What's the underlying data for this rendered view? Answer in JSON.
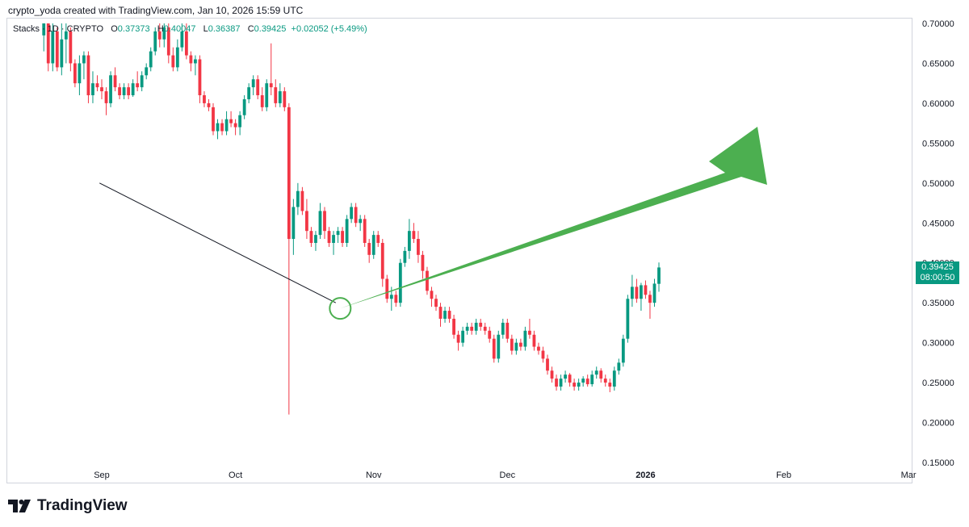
{
  "header": {
    "caption": "crypto_yoda created with TradingView.com, Jan 10, 2026 15:59 UTC"
  },
  "legend": {
    "symbol": "Stacks · 1D · CRYPTO",
    "o_label": "O",
    "o": "0.37373",
    "h_label": "H",
    "h": "0.40047",
    "l_label": "L",
    "l": "0.36387",
    "c_label": "C",
    "c": "0.39425",
    "change": "+0.02052 (+5.49%)"
  },
  "price_badge": {
    "price": "0.39425",
    "countdown": "08:00:50"
  },
  "footer": {
    "logo": "TradingView"
  },
  "colors": {
    "up": "#089981",
    "down": "#f23645",
    "arrow": "#4caf50",
    "circle": "#4caf50",
    "trend": "#131722"
  },
  "chart_data": {
    "type": "candlestick",
    "title": "Stacks 1D CRYPTO",
    "ylim": [
      0.15,
      0.7
    ],
    "y_ticks": [
      "0.70000",
      "0.65000",
      "0.60000",
      "0.55000",
      "0.50000",
      "0.45000",
      "0.40000",
      "0.35000",
      "0.30000",
      "0.25000",
      "0.20000",
      "0.15000"
    ],
    "x_ticks": [
      {
        "label": "Sep",
        "day": 0
      },
      {
        "label": "Oct",
        "day": 30
      },
      {
        "label": "Nov",
        "day": 61
      },
      {
        "label": "Dec",
        "day": 91
      },
      {
        "label": "2026",
        "day": 122
      },
      {
        "label": "Feb",
        "day": 153
      },
      {
        "label": "Mar",
        "day": 181
      }
    ],
    "first_day": -13,
    "candles": [
      [
        0.685,
        0.7,
        0.665,
        0.7
      ],
      [
        0.7,
        0.705,
        0.64,
        0.65
      ],
      [
        0.65,
        0.7,
        0.64,
        0.69
      ],
      [
        0.69,
        0.695,
        0.64,
        0.645
      ],
      [
        0.645,
        0.7,
        0.635,
        0.68
      ],
      [
        0.68,
        0.705,
        0.65,
        0.69
      ],
      [
        0.69,
        0.695,
        0.64,
        0.65
      ],
      [
        0.65,
        0.655,
        0.62,
        0.625
      ],
      [
        0.625,
        0.66,
        0.61,
        0.65
      ],
      [
        0.65,
        0.665,
        0.63,
        0.66
      ],
      [
        0.66,
        0.665,
        0.6,
        0.61
      ],
      [
        0.61,
        0.64,
        0.6,
        0.625
      ],
      [
        0.625,
        0.635,
        0.615,
        0.62
      ],
      [
        0.62,
        0.63,
        0.605,
        0.615
      ],
      [
        0.615,
        0.62,
        0.585,
        0.6
      ],
      [
        0.6,
        0.64,
        0.595,
        0.635
      ],
      [
        0.635,
        0.645,
        0.615,
        0.62
      ],
      [
        0.62,
        0.625,
        0.605,
        0.61
      ],
      [
        0.61,
        0.625,
        0.605,
        0.62
      ],
      [
        0.62,
        0.625,
        0.605,
        0.61
      ],
      [
        0.61,
        0.63,
        0.608,
        0.625
      ],
      [
        0.625,
        0.64,
        0.615,
        0.62
      ],
      [
        0.62,
        0.64,
        0.615,
        0.635
      ],
      [
        0.635,
        0.65,
        0.63,
        0.645
      ],
      [
        0.645,
        0.67,
        0.64,
        0.665
      ],
      [
        0.665,
        0.695,
        0.66,
        0.69
      ],
      [
        0.69,
        0.7,
        0.67,
        0.68
      ],
      [
        0.68,
        0.7,
        0.67,
        0.695
      ],
      [
        0.695,
        0.7,
        0.65,
        0.66
      ],
      [
        0.66,
        0.67,
        0.64,
        0.645
      ],
      [
        0.645,
        0.68,
        0.64,
        0.67
      ],
      [
        0.67,
        0.7,
        0.665,
        0.69
      ],
      [
        0.69,
        0.7,
        0.655,
        0.66
      ],
      [
        0.66,
        0.665,
        0.64,
        0.65
      ],
      [
        0.65,
        0.66,
        0.635,
        0.655
      ],
      [
        0.655,
        0.66,
        0.6,
        0.61
      ],
      [
        0.61,
        0.615,
        0.595,
        0.6
      ],
      [
        0.6,
        0.605,
        0.59,
        0.595
      ],
      [
        0.595,
        0.6,
        0.56,
        0.565
      ],
      [
        0.565,
        0.58,
        0.555,
        0.575
      ],
      [
        0.575,
        0.58,
        0.56,
        0.565
      ],
      [
        0.565,
        0.59,
        0.56,
        0.58
      ],
      [
        0.58,
        0.59,
        0.57,
        0.575
      ],
      [
        0.575,
        0.58,
        0.56,
        0.57
      ],
      [
        0.57,
        0.59,
        0.56,
        0.585
      ],
      [
        0.585,
        0.61,
        0.58,
        0.605
      ],
      [
        0.605,
        0.625,
        0.6,
        0.62
      ],
      [
        0.62,
        0.635,
        0.61,
        0.63
      ],
      [
        0.63,
        0.635,
        0.605,
        0.61
      ],
      [
        0.61,
        0.62,
        0.59,
        0.595
      ],
      [
        0.595,
        0.63,
        0.59,
        0.625
      ],
      [
        0.625,
        0.675,
        0.61,
        0.62
      ],
      [
        0.62,
        0.63,
        0.595,
        0.6
      ],
      [
        0.6,
        0.625,
        0.595,
        0.615
      ],
      [
        0.615,
        0.62,
        0.59,
        0.595
      ],
      [
        0.595,
        0.6,
        0.21,
        0.43
      ],
      [
        0.43,
        0.48,
        0.41,
        0.47
      ],
      [
        0.47,
        0.5,
        0.46,
        0.49
      ],
      [
        0.49,
        0.495,
        0.46,
        0.465
      ],
      [
        0.465,
        0.48,
        0.43,
        0.44
      ],
      [
        0.44,
        0.445,
        0.42,
        0.425
      ],
      [
        0.425,
        0.44,
        0.415,
        0.435
      ],
      [
        0.435,
        0.475,
        0.43,
        0.465
      ],
      [
        0.465,
        0.47,
        0.43,
        0.44
      ],
      [
        0.44,
        0.445,
        0.42,
        0.425
      ],
      [
        0.425,
        0.44,
        0.41,
        0.435
      ],
      [
        0.435,
        0.445,
        0.425,
        0.44
      ],
      [
        0.44,
        0.445,
        0.42,
        0.425
      ],
      [
        0.425,
        0.46,
        0.42,
        0.455
      ],
      [
        0.455,
        0.475,
        0.45,
        0.47
      ],
      [
        0.47,
        0.475,
        0.445,
        0.45
      ],
      [
        0.45,
        0.46,
        0.44,
        0.455
      ],
      [
        0.455,
        0.46,
        0.42,
        0.425
      ],
      [
        0.425,
        0.43,
        0.4,
        0.41
      ],
      [
        0.41,
        0.44,
        0.405,
        0.435
      ],
      [
        0.435,
        0.44,
        0.42,
        0.425
      ],
      [
        0.425,
        0.43,
        0.37,
        0.38
      ],
      [
        0.38,
        0.385,
        0.35,
        0.355
      ],
      [
        0.355,
        0.37,
        0.34,
        0.36
      ],
      [
        0.36,
        0.365,
        0.345,
        0.35
      ],
      [
        0.35,
        0.405,
        0.345,
        0.4
      ],
      [
        0.4,
        0.42,
        0.395,
        0.415
      ],
      [
        0.415,
        0.455,
        0.405,
        0.44
      ],
      [
        0.44,
        0.45,
        0.425,
        0.43
      ],
      [
        0.43,
        0.44,
        0.4,
        0.41
      ],
      [
        0.41,
        0.415,
        0.38,
        0.39
      ],
      [
        0.39,
        0.395,
        0.36,
        0.365
      ],
      [
        0.365,
        0.37,
        0.345,
        0.355
      ],
      [
        0.355,
        0.36,
        0.34,
        0.345
      ],
      [
        0.345,
        0.35,
        0.32,
        0.33
      ],
      [
        0.33,
        0.345,
        0.325,
        0.34
      ],
      [
        0.34,
        0.345,
        0.325,
        0.33
      ],
      [
        0.33,
        0.335,
        0.305,
        0.31
      ],
      [
        0.31,
        0.315,
        0.29,
        0.3
      ],
      [
        0.3,
        0.32,
        0.295,
        0.315
      ],
      [
        0.315,
        0.325,
        0.31,
        0.32
      ],
      [
        0.32,
        0.325,
        0.31,
        0.315
      ],
      [
        0.315,
        0.33,
        0.31,
        0.325
      ],
      [
        0.325,
        0.33,
        0.315,
        0.32
      ],
      [
        0.32,
        0.325,
        0.31,
        0.315
      ],
      [
        0.315,
        0.32,
        0.3,
        0.305
      ],
      [
        0.305,
        0.31,
        0.275,
        0.28
      ],
      [
        0.28,
        0.315,
        0.275,
        0.31
      ],
      [
        0.31,
        0.33,
        0.305,
        0.325
      ],
      [
        0.325,
        0.33,
        0.3,
        0.305
      ],
      [
        0.305,
        0.31,
        0.285,
        0.29
      ],
      [
        0.29,
        0.305,
        0.285,
        0.3
      ],
      [
        0.3,
        0.305,
        0.29,
        0.295
      ],
      [
        0.295,
        0.32,
        0.29,
        0.315
      ],
      [
        0.315,
        0.33,
        0.305,
        0.31
      ],
      [
        0.31,
        0.315,
        0.29,
        0.295
      ],
      [
        0.295,
        0.3,
        0.285,
        0.29
      ],
      [
        0.29,
        0.295,
        0.275,
        0.28
      ],
      [
        0.28,
        0.285,
        0.26,
        0.265
      ],
      [
        0.265,
        0.27,
        0.25,
        0.255
      ],
      [
        0.255,
        0.26,
        0.24,
        0.245
      ],
      [
        0.245,
        0.26,
        0.24,
        0.255
      ],
      [
        0.255,
        0.265,
        0.25,
        0.26
      ],
      [
        0.26,
        0.262,
        0.245,
        0.25
      ],
      [
        0.25,
        0.255,
        0.24,
        0.245
      ],
      [
        0.245,
        0.255,
        0.24,
        0.25
      ],
      [
        0.25,
        0.258,
        0.245,
        0.255
      ],
      [
        0.255,
        0.26,
        0.245,
        0.248
      ],
      [
        0.248,
        0.265,
        0.245,
        0.26
      ],
      [
        0.26,
        0.27,
        0.255,
        0.265
      ],
      [
        0.265,
        0.268,
        0.25,
        0.255
      ],
      [
        0.255,
        0.26,
        0.245,
        0.25
      ],
      [
        0.25,
        0.255,
        0.238,
        0.245
      ],
      [
        0.245,
        0.27,
        0.24,
        0.265
      ],
      [
        0.265,
        0.28,
        0.26,
        0.275
      ],
      [
        0.275,
        0.31,
        0.27,
        0.305
      ],
      [
        0.305,
        0.36,
        0.3,
        0.355
      ],
      [
        0.355,
        0.385,
        0.345,
        0.37
      ],
      [
        0.37,
        0.38,
        0.35,
        0.355
      ],
      [
        0.355,
        0.375,
        0.34,
        0.372
      ],
      [
        0.372,
        0.378,
        0.355,
        0.36
      ],
      [
        0.36,
        0.365,
        0.33,
        0.35
      ],
      [
        0.35,
        0.38,
        0.345,
        0.374
      ],
      [
        0.37373,
        0.40047,
        0.36387,
        0.39425
      ]
    ],
    "trendline": [
      [
        -0.5,
        0.5
      ],
      [
        52.5,
        0.35
      ]
    ],
    "circle_point": [
      53.5,
      0.343
    ]
  }
}
